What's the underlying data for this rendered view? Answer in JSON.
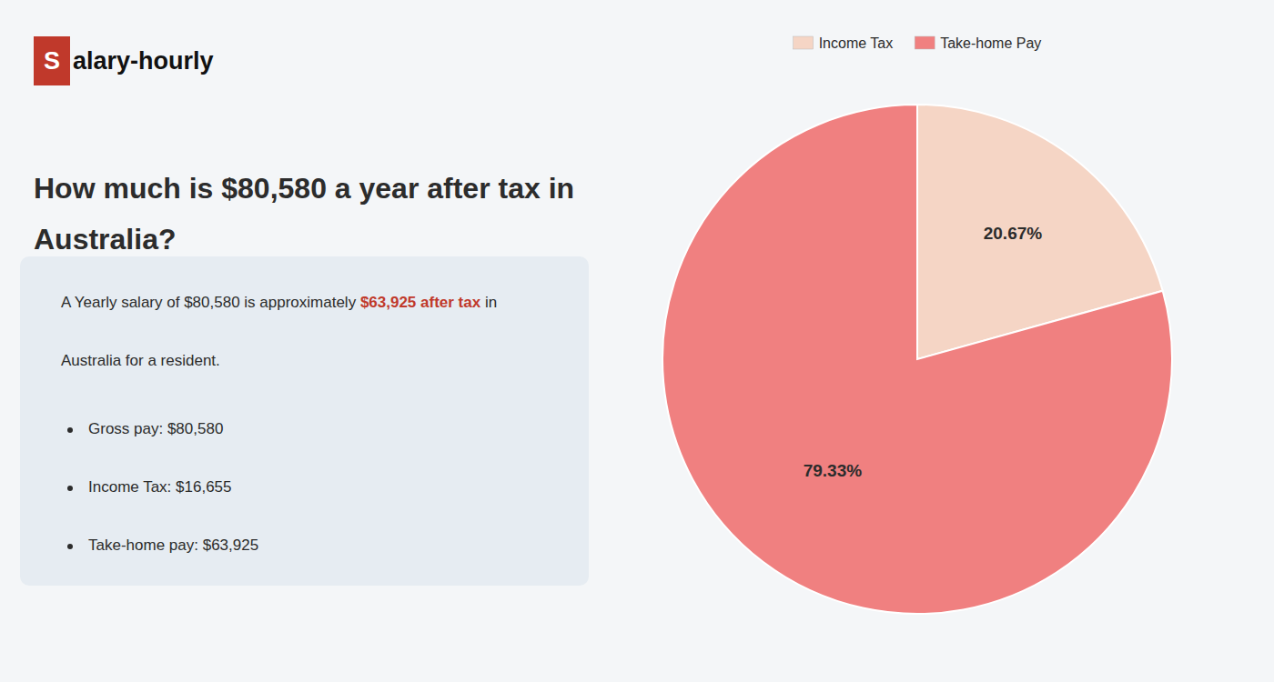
{
  "chart_data": {
    "type": "pie",
    "title": [
      "How much is $80,580 a year after tax in",
      "Australia?"
    ],
    "categories": [
      "Income Tax",
      "Take-home Pay"
    ],
    "values": [
      20.67,
      79.33
    ],
    "value_labels": [
      "20.67%",
      "79.33%"
    ],
    "colors": [
      "#f5d5c5",
      "#f08080"
    ],
    "data_labels": true,
    "legend": "top",
    "annotations": [
      [
        {
          "text": "S",
          "color": "#c0392b"
        },
        {
          "text": "alary-hourly"
        }
      ],
      [
        {
          "text": "A Yearly salary of $80,580 is approximately "
        },
        {
          "text": "$63,925 after tax",
          "color": "#c0392b"
        },
        {
          "text": " in"
        }
      ],
      [
        {
          "text": "Australia for a resident."
        }
      ],
      [
        {
          "text": "Gross pay: $80,580"
        }
      ],
      [
        {
          "text": "Income Tax: $16,655"
        }
      ],
      [
        {
          "text": "Take-home pay: $63,925"
        }
      ]
    ]
  }
}
